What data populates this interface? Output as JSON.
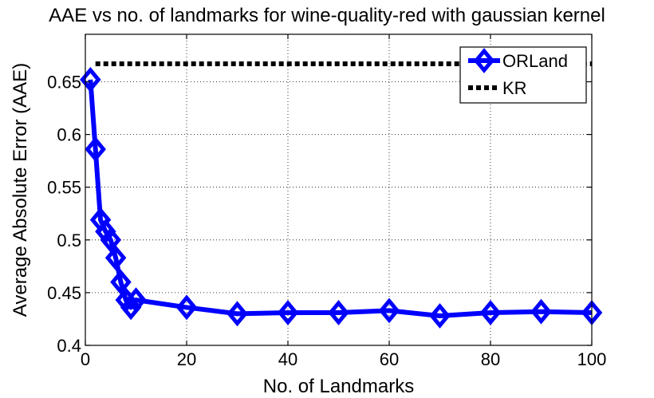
{
  "chart_data": {
    "type": "line",
    "title": "AAE vs no. of landmarks for wine-quality-red with gaussian kernel",
    "xlabel": "No. of Landmarks",
    "ylabel": "Average Absolute Error (AAE)",
    "xlim": [
      0,
      100
    ],
    "ylim": [
      0.4,
      0.695
    ],
    "xticks": [
      0,
      20,
      40,
      60,
      80,
      100
    ],
    "yticks": [
      0.4,
      0.45,
      0.5,
      0.55,
      0.6,
      0.65
    ],
    "ytick_labels": [
      "0.4",
      "0.45",
      "0.5",
      "0.55",
      "0.6",
      "0.65"
    ],
    "grid": true,
    "legend_position": "top-right",
    "series": [
      {
        "name": "ORLand",
        "color": "#0000ff",
        "marker": "diamond",
        "x": [
          1,
          2,
          3,
          4,
          5,
          6,
          7,
          8,
          9,
          10,
          20,
          30,
          40,
          50,
          60,
          70,
          80,
          90,
          100
        ],
        "y": [
          0.652,
          0.586,
          0.519,
          0.508,
          0.5,
          0.483,
          0.46,
          0.443,
          0.436,
          0.443,
          0.436,
          0.43,
          0.431,
          0.431,
          0.433,
          0.428,
          0.431,
          0.432,
          0.431
        ]
      },
      {
        "name": "KR",
        "color": "#000000",
        "style": "dotted",
        "x": [
          2,
          100
        ],
        "y": [
          0.667,
          0.667
        ]
      }
    ]
  }
}
